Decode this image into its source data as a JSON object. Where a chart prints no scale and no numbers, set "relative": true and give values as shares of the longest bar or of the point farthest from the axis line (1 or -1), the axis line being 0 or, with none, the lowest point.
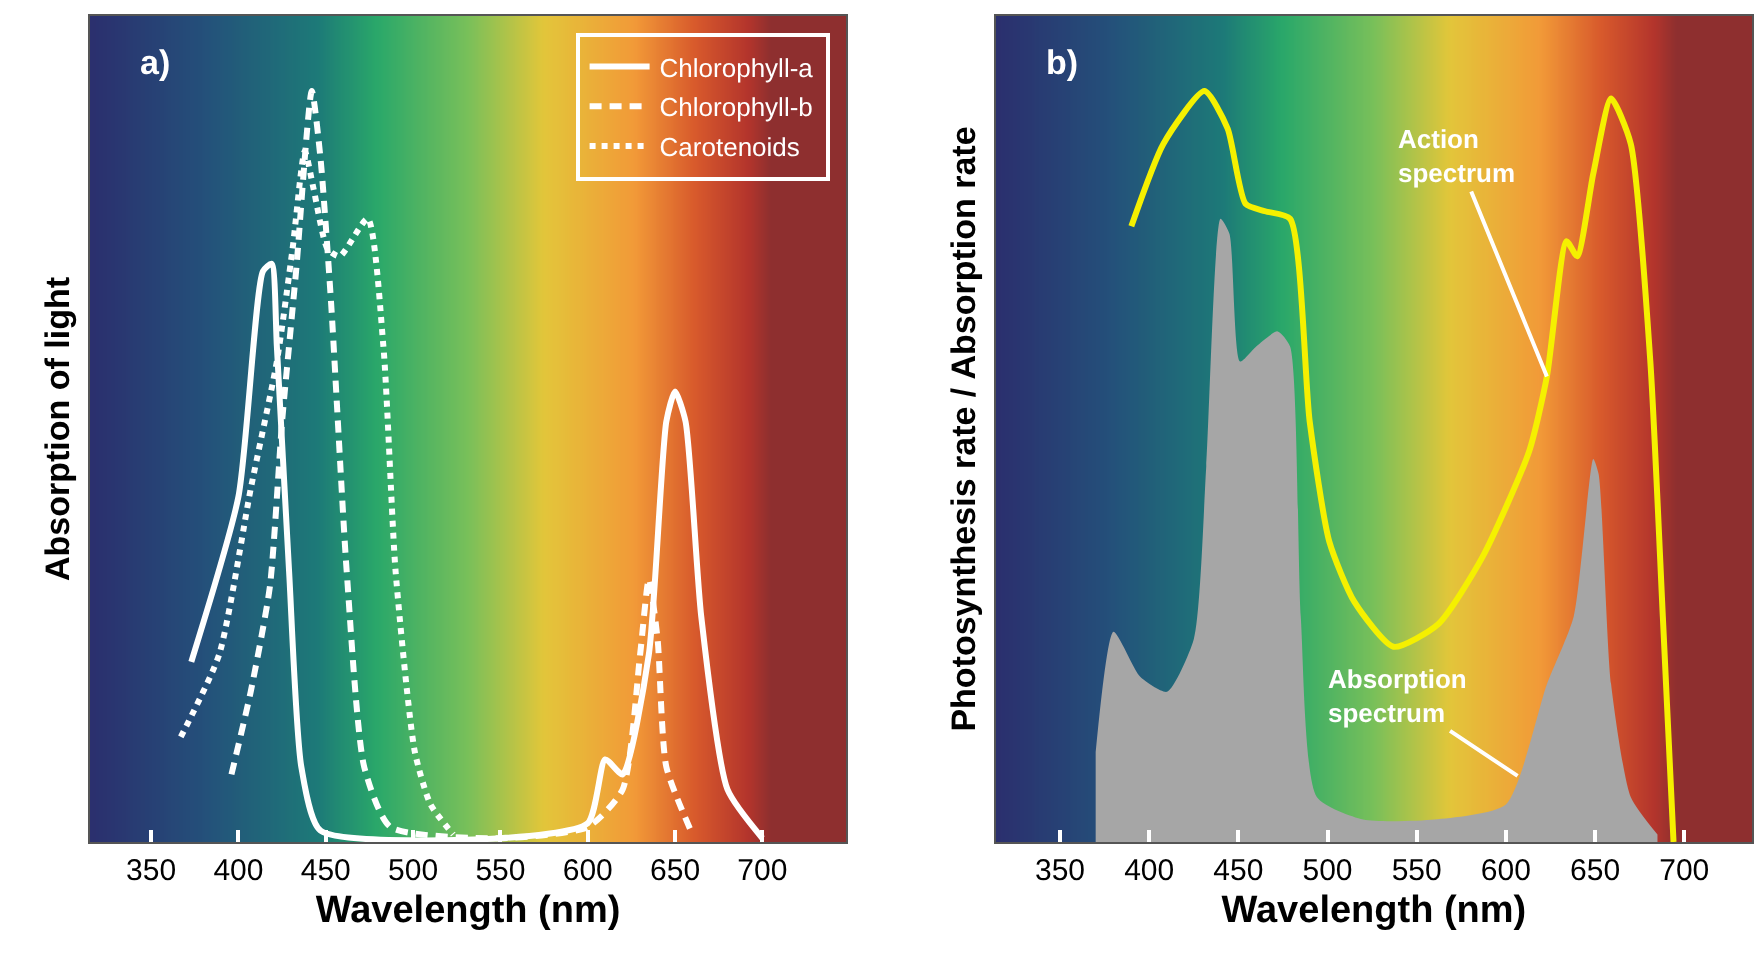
{
  "chart_data": [
    {
      "type": "line",
      "title": "a)",
      "xlabel": "Wavelength (nm)",
      "ylabel": "Absorption of light",
      "relative": true,
      "xlim": [
        315,
        748
      ],
      "xticks": [
        350,
        400,
        450,
        500,
        550,
        600,
        650,
        700
      ],
      "grid": false,
      "legend": "top right",
      "marker": "none",
      "series": [
        {
          "name": "Chlorophyll-a",
          "color": "#ffffff",
          "line_style": "solid",
          "x": [
            373,
            400,
            414,
            419,
            422,
            429,
            436,
            447,
            550,
            600,
            610,
            620,
            635,
            645,
            650,
            656,
            665,
            680,
            700
          ],
          "values": [
            0.24,
            0.46,
            0.76,
            0.77,
            0.66,
            0.36,
            0.1,
            0.015,
            0.005,
            0.025,
            0.11,
            0.09,
            0.25,
            0.56,
            0.6,
            0.56,
            0.3,
            0.07,
            0.005
          ]
        },
        {
          "name": "Chlorophyll-b",
          "color": "#ffffff",
          "line_style": "dashed",
          "x": [
            396,
            407,
            418,
            425,
            433,
            442,
            447,
            453,
            462,
            472,
            487,
            550,
            600,
            620,
            630,
            635,
            640,
            645,
            660
          ],
          "values": [
            0.09,
            0.2,
            0.34,
            0.56,
            0.76,
            1,
            0.91,
            0.72,
            0.36,
            0.1,
            0.02,
            0.005,
            0.02,
            0.07,
            0.25,
            0.35,
            0.27,
            0.1,
            0.01
          ]
        },
        {
          "name": "Carotenoids",
          "color": "#ffffff",
          "line_style": "dotted",
          "x": [
            367,
            389,
            407,
            422,
            431,
            438,
            443,
            451,
            458,
            474,
            483,
            490,
            501,
            510,
            523
          ],
          "values": [
            0.14,
            0.25,
            0.47,
            0.64,
            0.79,
            0.92,
            0.87,
            0.79,
            0.78,
            0.83,
            0.66,
            0.36,
            0.12,
            0.05,
            0.01
          ]
        }
      ]
    },
    {
      "type": "line",
      "title": "b)",
      "xlabel": "Wavelength (nm)",
      "ylabel": "Photosynthesis rate / Absorption rate",
      "relative": true,
      "xlim": [
        314,
        738
      ],
      "xticks": [
        350,
        400,
        450,
        500,
        550,
        600,
        650,
        700
      ],
      "grid": false,
      "legend": false,
      "marker": "none",
      "annotations": [
        {
          "text": "Action\nspectrum",
          "x": 623,
          "y": 0.62
        },
        "Absorption\nspectrum"
      ],
      "series": [
        {
          "type": "area",
          "color": "#a6a6a6",
          "x": [
            370,
            380,
            395,
            410,
            425,
            432,
            440,
            445,
            451,
            460,
            472,
            479,
            485,
            494,
            520,
            560,
            600,
            623,
            638,
            649,
            652,
            659,
            670,
            685
          ],
          "values": [
            0.12,
            0.28,
            0.22,
            0.2,
            0.27,
            0.5,
            0.83,
            0.81,
            0.64,
            0.66,
            0.68,
            0.66,
            0.3,
            0.06,
            0.03,
            0.03,
            0.05,
            0.21,
            0.3,
            0.51,
            0.49,
            0.21,
            0.06,
            0.01
          ]
        },
        {
          "type": "line",
          "color": "#f5f000",
          "line_style": "solid",
          "x": [
            390,
            408,
            431,
            444,
            454,
            465,
            479,
            490,
            501,
            515,
            537,
            562,
            587,
            613,
            623,
            634,
            640,
            649,
            659,
            670,
            681,
            688,
            694
          ],
          "values": [
            0.82,
            0.93,
            1.0,
            0.95,
            0.85,
            0.84,
            0.83,
            0.56,
            0.4,
            0.32,
            0.26,
            0.29,
            0.38,
            0.52,
            0.62,
            0.8,
            0.78,
            0.89,
            0.99,
            0.93,
            0.64,
            0.3,
            0.0
          ]
        }
      ]
    }
  ]
}
